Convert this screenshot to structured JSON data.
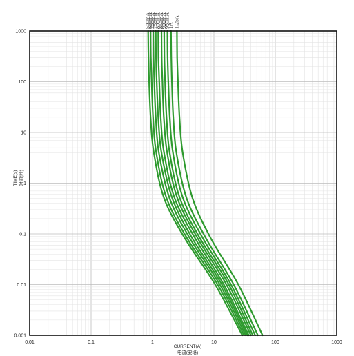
{
  "chart_data": {
    "type": "line",
    "title": "",
    "xlabel": "CURRENT(A)",
    "xlabel_cn": "电流(安培)",
    "ylabel": "TIME(s)",
    "ylabel_cn": "时间(秒)",
    "x_scale": "log",
    "y_scale": "log",
    "xlim": [
      0.01,
      1000
    ],
    "ylim": [
      0.001,
      1000
    ],
    "grid": true,
    "x_ticks": [
      "0.01",
      "0.1",
      "1",
      "10",
      "100",
      "1000"
    ],
    "y_ticks": [
      "0.001",
      "0.01",
      "0.1",
      "1",
      "10",
      "100",
      "1000"
    ],
    "line_color": "#2e9a2e",
    "series": [
      {
        "name": "500mA",
        "x": [
          0.85,
          0.86,
          0.88,
          0.93,
          1.05,
          1.55,
          3.4,
          10.5,
          29
        ],
        "y": [
          1000,
          300,
          100,
          20,
          4,
          0.5,
          0.08,
          0.01,
          0.001
        ]
      },
      {
        "name": "600mA",
        "x": [
          0.93,
          0.94,
          0.97,
          1.02,
          1.15,
          1.7,
          3.7,
          11.5,
          31
        ],
        "y": [
          1000,
          300,
          100,
          20,
          4,
          0.5,
          0.08,
          0.01,
          0.001
        ]
      },
      {
        "name": "700mA",
        "x": [
          1.03,
          1.04,
          1.07,
          1.13,
          1.27,
          1.9,
          4.1,
          12.5,
          33
        ],
        "y": [
          1000,
          300,
          100,
          20,
          4,
          0.5,
          0.08,
          0.01,
          0.001
        ]
      },
      {
        "name": "750mA",
        "x": [
          1.13,
          1.14,
          1.17,
          1.24,
          1.4,
          2.1,
          4.5,
          13.5,
          35
        ],
        "y": [
          1000,
          300,
          100,
          20,
          4,
          0.5,
          0.08,
          0.01,
          0.001
        ]
      },
      {
        "name": "800mA",
        "x": [
          1.24,
          1.25,
          1.29,
          1.36,
          1.54,
          2.3,
          5.0,
          14.5,
          37
        ],
        "y": [
          1000,
          300,
          100,
          20,
          4,
          0.5,
          0.08,
          0.01,
          0.001
        ]
      },
      {
        "name": "850mA",
        "x": [
          1.4,
          1.41,
          1.45,
          1.53,
          1.73,
          2.55,
          5.5,
          16,
          40
        ],
        "y": [
          1000,
          300,
          100,
          20,
          4,
          0.5,
          0.08,
          0.01,
          0.001
        ]
      },
      {
        "name": "900mA",
        "x": [
          1.55,
          1.56,
          1.6,
          1.69,
          1.9,
          2.8,
          6.0,
          17.5,
          43
        ],
        "y": [
          1000,
          300,
          100,
          20,
          4,
          0.5,
          0.08,
          0.01,
          0.001
        ]
      },
      {
        "name": "950mA",
        "x": [
          1.75,
          1.76,
          1.81,
          1.91,
          2.15,
          3.15,
          6.7,
          19,
          47
        ],
        "y": [
          1000,
          300,
          100,
          20,
          4,
          0.5,
          0.08,
          0.01,
          0.001
        ]
      },
      {
        "name": "1A",
        "x": [
          2.0,
          2.02,
          2.07,
          2.18,
          2.45,
          3.6,
          7.5,
          21,
          52
        ],
        "y": [
          1000,
          300,
          100,
          20,
          4,
          0.5,
          0.08,
          0.01,
          0.001
        ]
      },
      {
        "name": "1.25A",
        "x": [
          2.5,
          2.52,
          2.6,
          2.75,
          3.1,
          4.5,
          9.0,
          25,
          62
        ],
        "y": [
          1000,
          300,
          100,
          20,
          4,
          0.5,
          0.08,
          0.01,
          0.001
        ]
      }
    ]
  }
}
